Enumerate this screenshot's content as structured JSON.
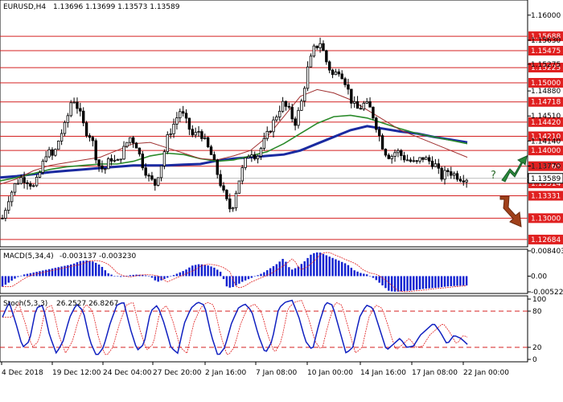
{
  "chart_data": [
    {
      "type": "candlestick",
      "panel": "price",
      "title": "EURUSD,H4",
      "ohlc_text": "1.13696 1.13699 1.13573 1.13589",
      "current_price": "1.13589",
      "ylim": [
        1.126,
        1.162
      ],
      "ytick_labels": [
        "1.16000",
        "1.15630",
        "1.15275",
        "1.14880",
        "1.14510",
        "1.14140",
        "1.13770"
      ],
      "level_lines": [
        {
          "value": 1.15688,
          "label": "1.15688"
        },
        {
          "value": 1.15475,
          "label": "1.15475"
        },
        {
          "value": 1.15225,
          "label": "1.15225"
        },
        {
          "value": 1.15,
          "label": "1.15000"
        },
        {
          "value": 1.14718,
          "label": "1.14718"
        },
        {
          "value": 1.1442,
          "label": "1.14420"
        },
        {
          "value": 1.1421,
          "label": "1.14210"
        },
        {
          "value": 1.14,
          "label": "1.14000"
        },
        {
          "value": 1.13768,
          "label": "1.13768"
        },
        {
          "value": 1.13514,
          "label": "1.13514"
        },
        {
          "value": 1.13331,
          "label": "1.13331"
        },
        {
          "value": 1.13,
          "label": "1.13000"
        },
        {
          "value": 1.12684,
          "label": "1.12684"
        }
      ],
      "xtick_labels": [
        "4 Dec 2018",
        "19 Dec 12:00",
        "24 Dec 04:00",
        "27 Dec 20:00",
        "2 Jan 16:00",
        "7 Jan 08:00",
        "10 Jan 00:00",
        "14 Jan 16:00",
        "17 Jan 08:00",
        "22 Jan 00:00"
      ],
      "close_path": [
        1.13,
        1.133,
        1.135,
        1.136,
        1.1355,
        1.1345,
        1.137,
        1.14,
        1.139,
        1.142,
        1.144,
        1.148,
        1.146,
        1.143,
        1.142,
        1.138,
        1.137,
        1.139,
        1.138,
        1.14,
        1.142,
        1.141,
        1.138,
        1.136,
        1.135,
        1.138,
        1.142,
        1.144,
        1.146,
        1.144,
        1.142,
        1.143,
        1.141,
        1.139,
        1.136,
        1.133,
        1.131,
        1.135,
        1.138,
        1.14,
        1.139,
        1.141,
        1.143,
        1.145,
        1.147,
        1.146,
        1.144,
        1.147,
        1.152,
        1.155,
        1.156,
        1.153,
        1.151,
        1.152,
        1.15,
        1.147,
        1.146,
        1.147,
        1.146,
        1.143,
        1.14,
        1.139,
        1.14,
        1.139,
        1.1385,
        1.138,
        1.139,
        1.1385,
        1.138,
        1.136,
        1.137,
        1.1365,
        1.136,
        1.1359
      ],
      "ma_lines": [
        {
          "color": "#1a2aa0",
          "values": [
            1.136,
            1.1362,
            1.1365,
            1.1368,
            1.137,
            1.1372,
            1.1374,
            1.1376,
            1.1378,
            1.1378,
            1.1378,
            1.1379,
            1.138,
            1.1385,
            1.1388,
            1.139,
            1.1392,
            1.1394,
            1.14,
            1.141,
            1.142,
            1.143,
            1.1436,
            1.1432,
            1.1428,
            1.1425,
            1.142,
            1.1416,
            1.1412
          ]
        },
        {
          "color": "#2a8a2a",
          "values": [
            1.1355,
            1.136,
            1.1366,
            1.1372,
            1.1376,
            1.1378,
            1.138,
            1.138,
            1.1384,
            1.1392,
            1.1396,
            1.1394,
            1.1388,
            1.1384,
            1.1386,
            1.1392,
            1.1398,
            1.141,
            1.1425,
            1.144,
            1.145,
            1.1452,
            1.1448,
            1.144,
            1.1432,
            1.1425,
            1.142,
            1.1415,
            1.141
          ]
        },
        {
          "color": "#a03030",
          "values": [
            1.135,
            1.1358,
            1.137,
            1.1378,
            1.1382,
            1.1386,
            1.139,
            1.14,
            1.141,
            1.1412,
            1.1404,
            1.1396,
            1.1388,
            1.1386,
            1.1392,
            1.14,
            1.142,
            1.145,
            1.148,
            1.149,
            1.1485,
            1.1475,
            1.146,
            1.1445,
            1.143,
            1.142,
            1.141,
            1.14,
            1.139
          ]
        }
      ],
      "annotations": {
        "question_mark": "?",
        "arrows": [
          "up",
          "down"
        ]
      }
    },
    {
      "type": "bar",
      "panel": "macd",
      "title": "MACD(5,34,4)",
      "values_text": "-0.003137 -0.003230",
      "ylim": [
        -0.005227,
        0.008403
      ],
      "ytick_labels": [
        "0.008403",
        "0.00",
        "-0.005227"
      ],
      "values": [
        -0.0035,
        -0.002,
        -0.0005,
        0.0005,
        0.001,
        0.0015,
        0.002,
        0.0025,
        0.003,
        0.0035,
        0.004,
        0.005,
        0.0052,
        0.0048,
        0.0035,
        0.001,
        0.0,
        -0.0003,
        0.0003,
        0.0005,
        0.0004,
        0.0,
        -0.002,
        -0.001,
        0.0,
        0.001,
        0.002,
        0.0035,
        0.004,
        0.0037,
        0.003,
        0.0015,
        -0.004,
        -0.0035,
        -0.002,
        -0.001,
        0.0,
        0.001,
        0.0025,
        0.004,
        0.006,
        0.002,
        0.003,
        0.005,
        0.0075,
        0.008,
        0.007,
        0.006,
        0.005,
        0.004,
        0.002,
        0.001,
        0.0005,
        -0.001,
        -0.003,
        -0.005,
        -0.0052,
        -0.005,
        -0.0048,
        -0.0045,
        -0.0042,
        -0.004,
        -0.0038,
        -0.0035,
        -0.0033,
        -0.0032,
        -0.0031
      ]
    },
    {
      "type": "line",
      "panel": "stochastic",
      "title": "Stoch(5,3,3)",
      "values_text": "26.2527 26.8267",
      "ylim": [
        0,
        100
      ],
      "ytick_labels": [
        "100",
        "80",
        "20",
        "0"
      ],
      "levels": [
        80,
        20
      ],
      "k_values": [
        70,
        95,
        60,
        20,
        30,
        85,
        90,
        40,
        10,
        30,
        70,
        92,
        80,
        30,
        5,
        20,
        60,
        90,
        95,
        50,
        15,
        25,
        80,
        90,
        60,
        20,
        10,
        60,
        85,
        95,
        90,
        40,
        5,
        20,
        60,
        85,
        92,
        80,
        40,
        10,
        30,
        85,
        95,
        98,
        70,
        30,
        15,
        60,
        95,
        90,
        50,
        10,
        20,
        70,
        90,
        85,
        50,
        15,
        25,
        35,
        20,
        22,
        40,
        50,
        60,
        45,
        25,
        40,
        35,
        25
      ]
    }
  ]
}
